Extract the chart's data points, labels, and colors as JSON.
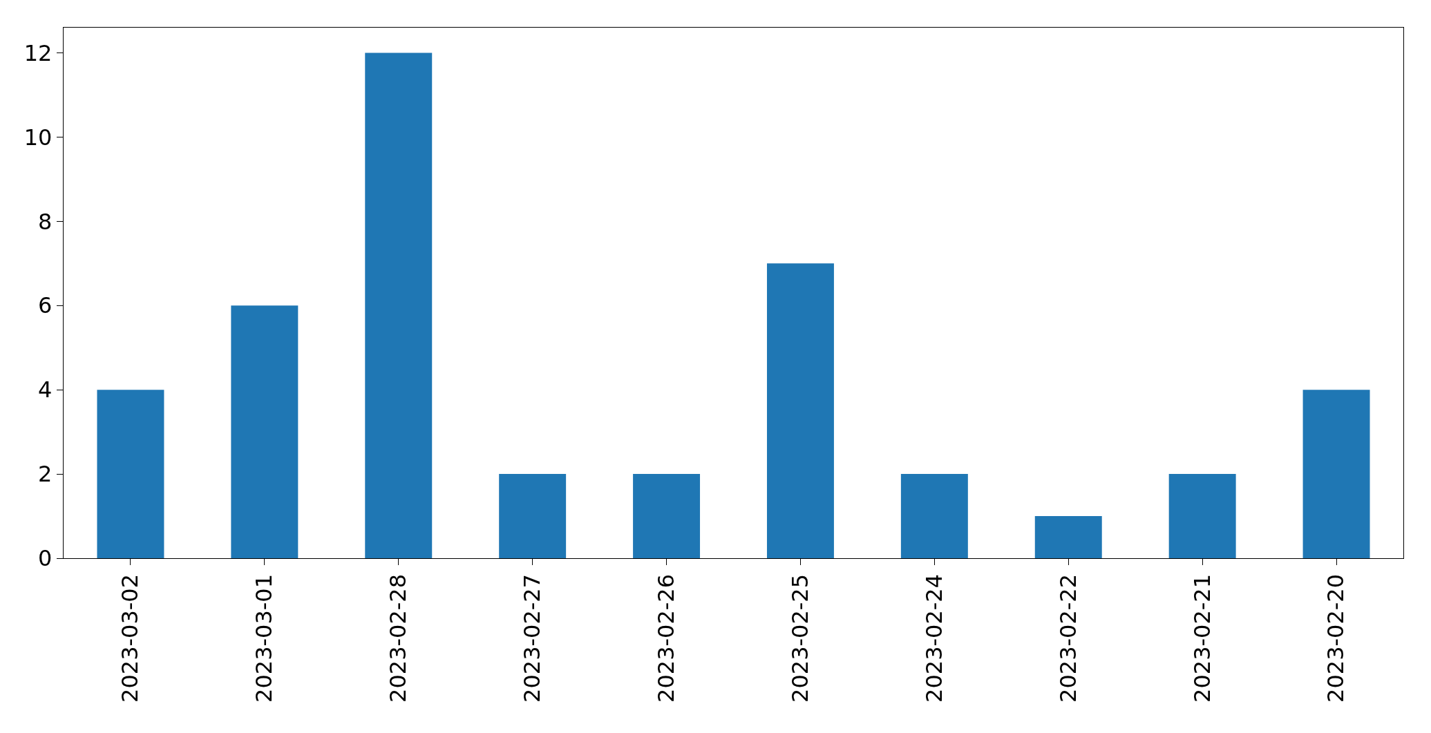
{
  "chart_data": {
    "type": "bar",
    "categories": [
      "2023-03-02",
      "2023-03-01",
      "2023-02-28",
      "2023-02-27",
      "2023-02-26",
      "2023-02-25",
      "2023-02-24",
      "2023-02-22",
      "2023-02-21",
      "2023-02-20"
    ],
    "values": [
      4,
      6,
      12,
      2,
      2,
      7,
      2,
      1,
      2,
      4
    ],
    "color": "#1f77b4",
    "ylim": [
      0,
      12.6
    ],
    "yticks": [
      0,
      2,
      4,
      6,
      8,
      10,
      12
    ],
    "grid": false
  }
}
